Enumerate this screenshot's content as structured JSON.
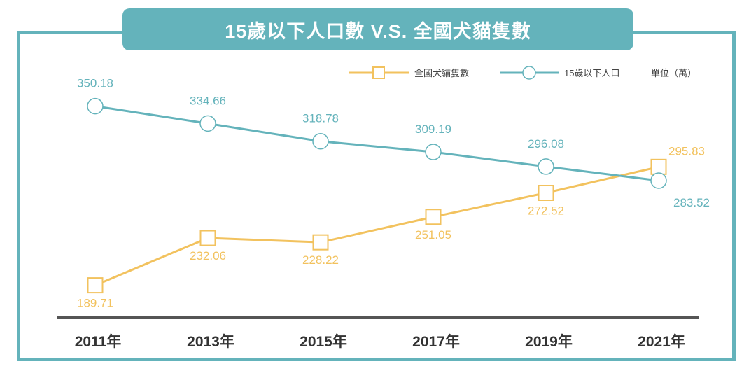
{
  "chart_data": {
    "type": "line",
    "title": "15歲以下人口數 V.S. 全國犬貓隻數",
    "unit_label": "單位（萬）",
    "categories": [
      "2011年",
      "2013年",
      "2015年",
      "2017年",
      "2019年",
      "2021年"
    ],
    "series": [
      {
        "name": "全國犬貓隻數",
        "values": [
          189.71,
          232.06,
          228.22,
          251.05,
          272.52,
          295.83
        ],
        "color": "#f2c25e",
        "marker": "square"
      },
      {
        "name": "15歲以下人口",
        "values": [
          350.18,
          334.66,
          318.78,
          309.19,
          296.08,
          283.52
        ],
        "color": "#64b3bb",
        "marker": "circle"
      }
    ],
    "value_labels": {
      "全國犬貓隻數": [
        "189.71",
        "232.06",
        "228.22",
        "251.05",
        "272.52",
        "295.83"
      ],
      "15歲以下人口": [
        "350.18",
        "334.66",
        "318.78",
        "309.19",
        "296.08",
        "283.52"
      ]
    },
    "ylim": [
      160,
      370
    ],
    "grid": false,
    "legend": "top-right"
  }
}
